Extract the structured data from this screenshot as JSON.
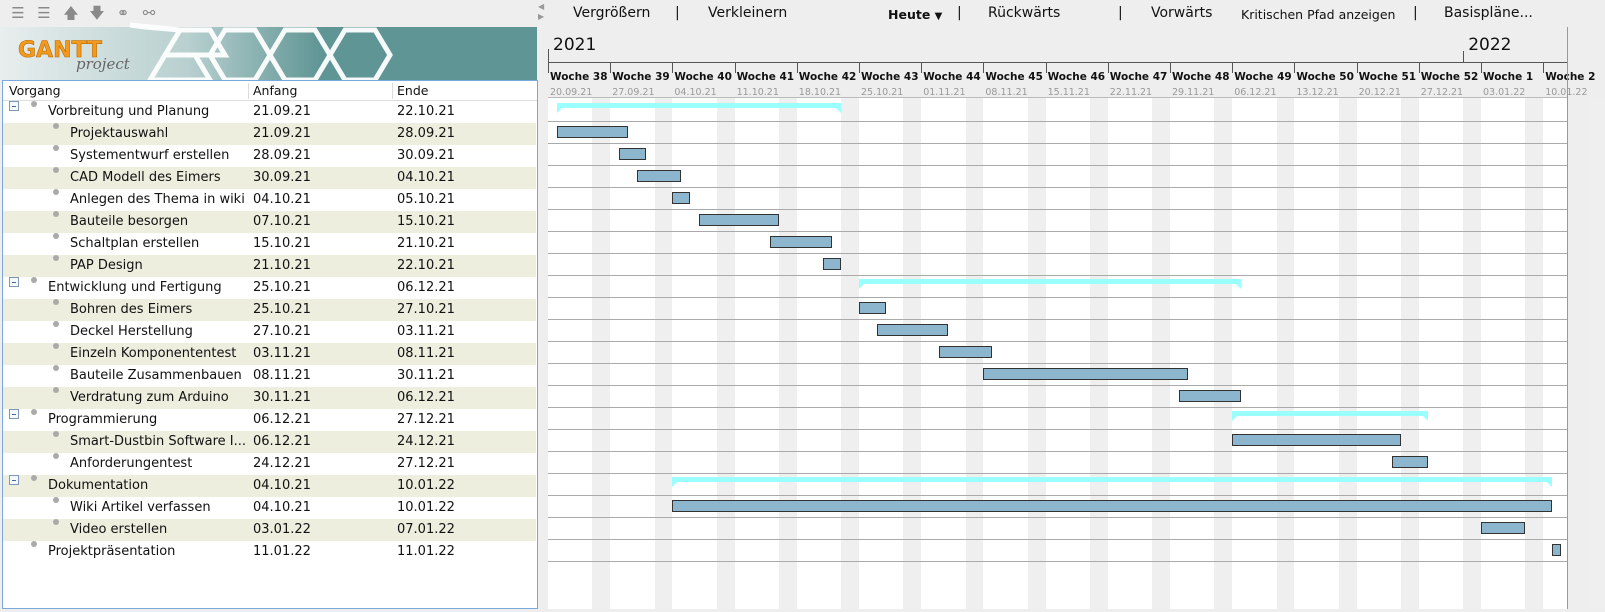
{
  "left_toolbar": {
    "icons": [
      "unindent-icon",
      "indent-icon",
      "move-up-icon",
      "move-down-icon",
      "link-icon",
      "unlink-icon"
    ]
  },
  "logo": {
    "text_main": "GANTT",
    "text_sub": "project"
  },
  "table": {
    "columns": [
      "Vorgang",
      "Anfang",
      "Ende"
    ],
    "rows": [
      {
        "name": "Vorbreitung und Planung",
        "start": "21.09.21",
        "end": "22.10.21",
        "level": 0,
        "summary": true
      },
      {
        "name": "Projektauswahl",
        "start": "21.09.21",
        "end": "28.09.21",
        "level": 1
      },
      {
        "name": "Systementwurf erstellen",
        "start": "28.09.21",
        "end": "30.09.21",
        "level": 1
      },
      {
        "name": "CAD Modell des Eimers",
        "start": "30.09.21",
        "end": "04.10.21",
        "level": 1
      },
      {
        "name": "Anlegen des Thema in wiki",
        "start": "04.10.21",
        "end": "05.10.21",
        "level": 1
      },
      {
        "name": "Bauteile besorgen",
        "start": "07.10.21",
        "end": "15.10.21",
        "level": 1
      },
      {
        "name": "Schaltplan erstellen",
        "start": "15.10.21",
        "end": "21.10.21",
        "level": 1
      },
      {
        "name": "PAP Design",
        "start": "21.10.21",
        "end": "22.10.21",
        "level": 1
      },
      {
        "name": "Entwicklung und Fertigung",
        "start": "25.10.21",
        "end": "06.12.21",
        "level": 0,
        "summary": true
      },
      {
        "name": "Bohren des Eimers",
        "start": "25.10.21",
        "end": "27.10.21",
        "level": 1
      },
      {
        "name": "Deckel Herstellung",
        "start": "27.10.21",
        "end": "03.11.21",
        "level": 1
      },
      {
        "name": "Einzeln Komponententest",
        "start": "03.11.21",
        "end": "08.11.21",
        "level": 1
      },
      {
        "name": "Bauteile Zusammenbauen",
        "start": "08.11.21",
        "end": "30.11.21",
        "level": 1
      },
      {
        "name": "Verdratung zum Arduino",
        "start": "30.11.21",
        "end": "06.12.21",
        "level": 1
      },
      {
        "name": "Programmierung",
        "start": "06.12.21",
        "end": "27.12.21",
        "level": 0,
        "summary": true
      },
      {
        "name": "Smart-Dustbin Software I...",
        "start": "06.12.21",
        "end": "24.12.21",
        "level": 1
      },
      {
        "name": "Anforderungentest",
        "start": "24.12.21",
        "end": "27.12.21",
        "level": 1
      },
      {
        "name": "Dokumentation",
        "start": "04.10.21",
        "end": "10.01.22",
        "level": 0,
        "summary": true
      },
      {
        "name": "Wiki Artikel verfassen",
        "start": "04.10.21",
        "end": "10.01.22",
        "level": 1
      },
      {
        "name": "Video erstellen",
        "start": "03.01.22",
        "end": "07.01.22",
        "level": 1
      },
      {
        "name": "Projektpräsentation",
        "start": "11.01.22",
        "end": "11.01.22",
        "level": 0
      }
    ]
  },
  "chart_toolbar": {
    "zoom_in": "Vergrößern",
    "zoom_out": "Verkleinern",
    "today": "Heute",
    "back": "Rückwärts",
    "forward": "Vorwärts",
    "critical_path": "Kritischen Pfad anzeigen",
    "baselines": "Basispläne...",
    "separator": "|"
  },
  "timeline": {
    "years": [
      "2021",
      "2022"
    ],
    "weeks": [
      {
        "label": "Woche 38",
        "date": "20.09.21"
      },
      {
        "label": "Woche 39",
        "date": "27.09.21"
      },
      {
        "label": "Woche 40",
        "date": "04.10.21"
      },
      {
        "label": "Woche 41",
        "date": "11.10.21"
      },
      {
        "label": "Woche 42",
        "date": "18.10.21"
      },
      {
        "label": "Woche 43",
        "date": "25.10.21"
      },
      {
        "label": "Woche 44",
        "date": "01.11.21"
      },
      {
        "label": "Woche 45",
        "date": "08.11.21"
      },
      {
        "label": "Woche 46",
        "date": "15.11.21"
      },
      {
        "label": "Woche 47",
        "date": "22.11.21"
      },
      {
        "label": "Woche 48",
        "date": "29.11.21"
      },
      {
        "label": "Woche 49",
        "date": "06.12.21"
      },
      {
        "label": "Woche 50",
        "date": "13.12.21"
      },
      {
        "label": "Woche 51",
        "date": "20.12.21"
      },
      {
        "label": "Woche 52",
        "date": "27.12.21"
      },
      {
        "label": "Woche 1",
        "date": "03.01.22"
      },
      {
        "label": "Woche 2",
        "date": "10.01.22"
      }
    ]
  },
  "colors": {
    "task_bar": "#8cb6ce",
    "summary_bar": "#99ffff",
    "weekend": "#efefef",
    "alt_row": "#eeeedf",
    "logo_orange": "#f39a1e",
    "banner": "#5f9594"
  }
}
